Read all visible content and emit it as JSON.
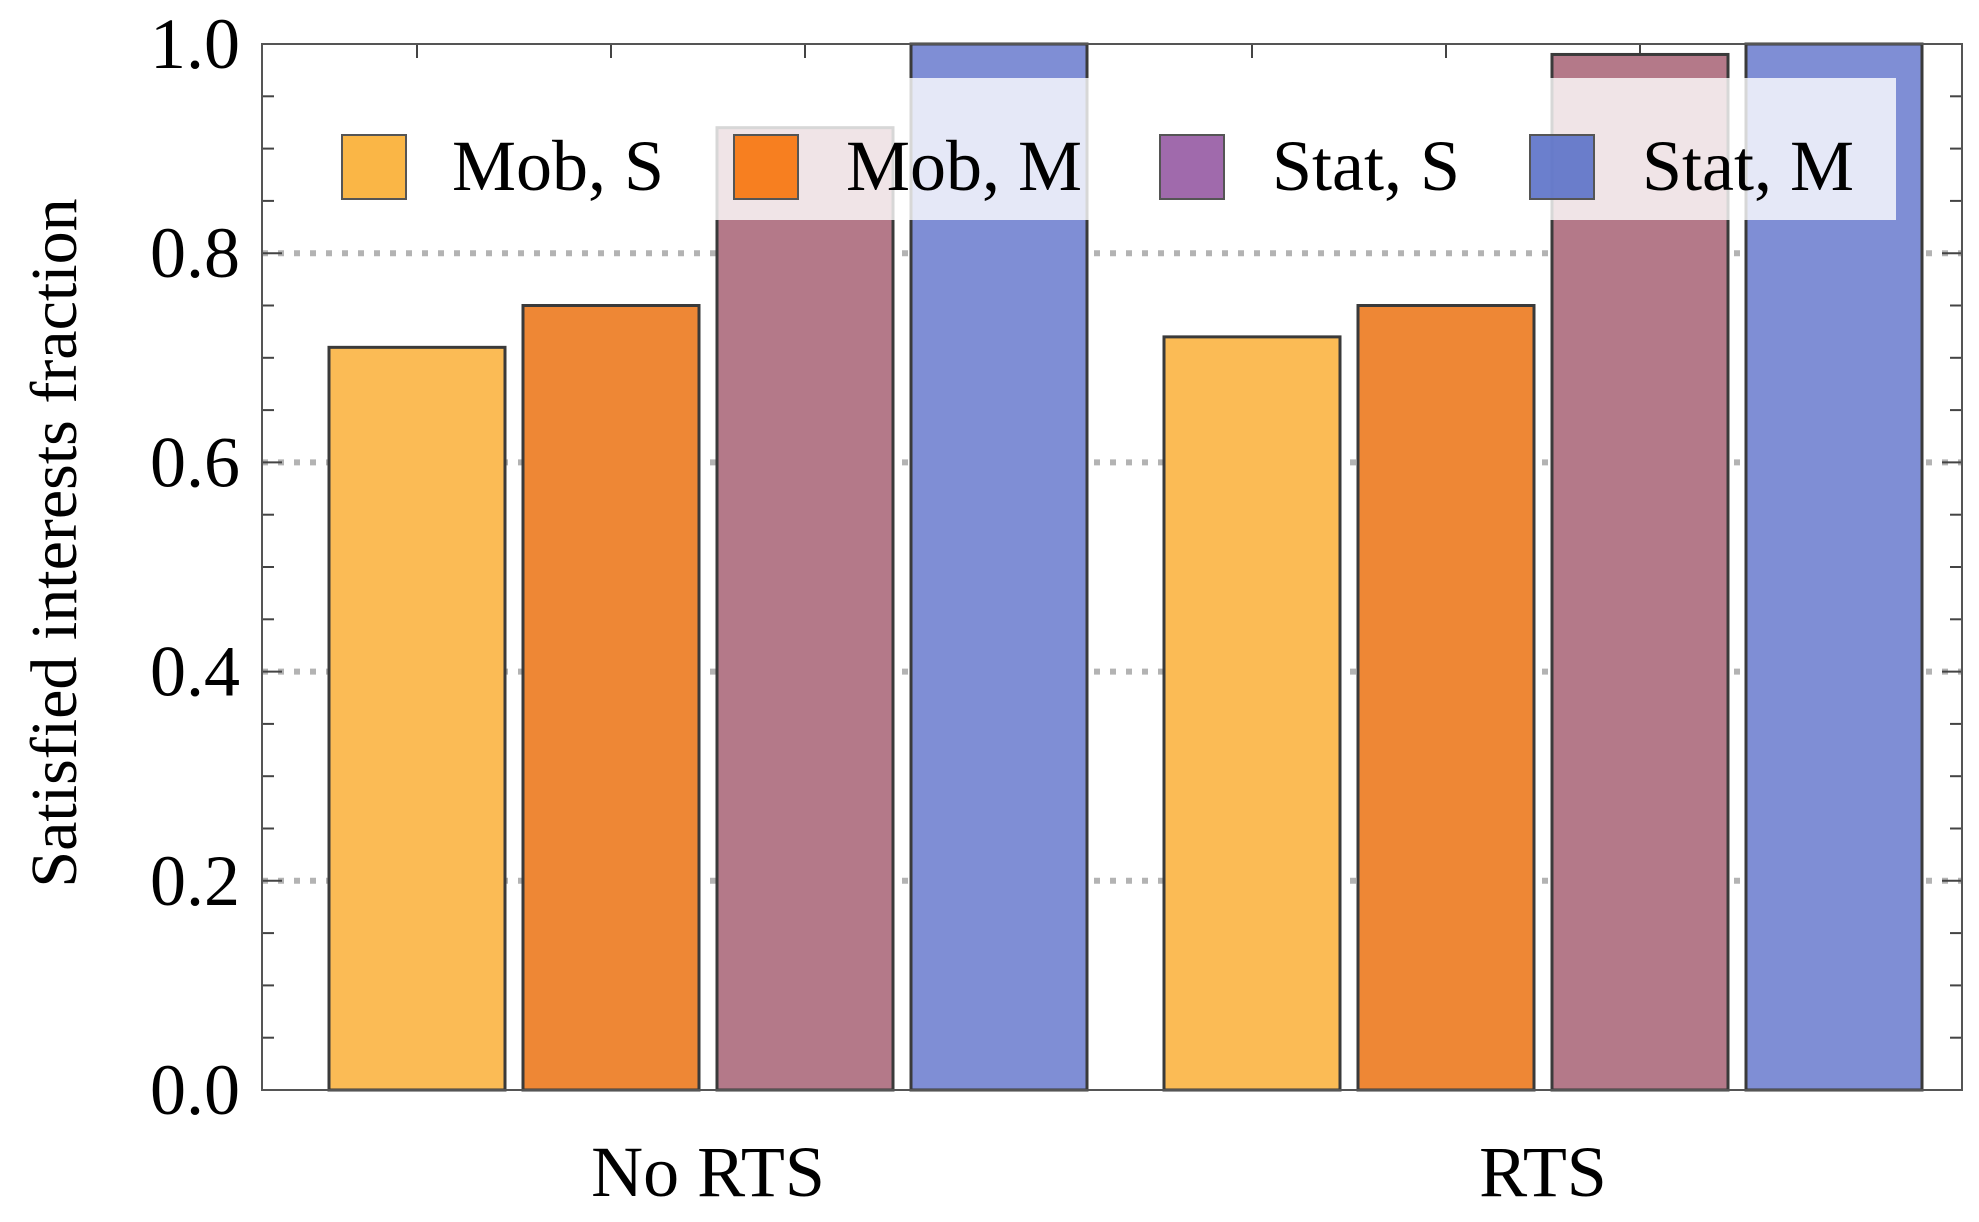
{
  "chart_data": {
    "type": "bar",
    "categories": [
      "No RTS",
      "RTS"
    ],
    "series": [
      {
        "name": "Mob, S",
        "values": [
          0.71,
          0.72
        ],
        "fill": "#FBBB55",
        "legend_color": "#F9AE32"
      },
      {
        "name": "Mob, M",
        "values": [
          0.75,
          0.75
        ],
        "fill": "#EE8735",
        "legend_color": "#F7730A"
      },
      {
        "name": "Stat, S",
        "values": [
          0.92,
          0.99
        ],
        "fill": "#B47989",
        "legend_color": "#965AA3"
      },
      {
        "name": "Stat, M",
        "values": [
          1.0,
          1.0
        ],
        "fill": "#7F8ED5",
        "legend_color": "#5B71C8"
      }
    ],
    "title": "",
    "xlabel": "",
    "ylabel": "Satisfied interests fraction",
    "ylim": [
      0,
      1.0
    ],
    "yticks": [
      "0.0",
      "0.2",
      "0.4",
      "0.6",
      "0.8",
      "1.0"
    ],
    "grid": "horizontal dotted",
    "legend_placement": "top"
  }
}
